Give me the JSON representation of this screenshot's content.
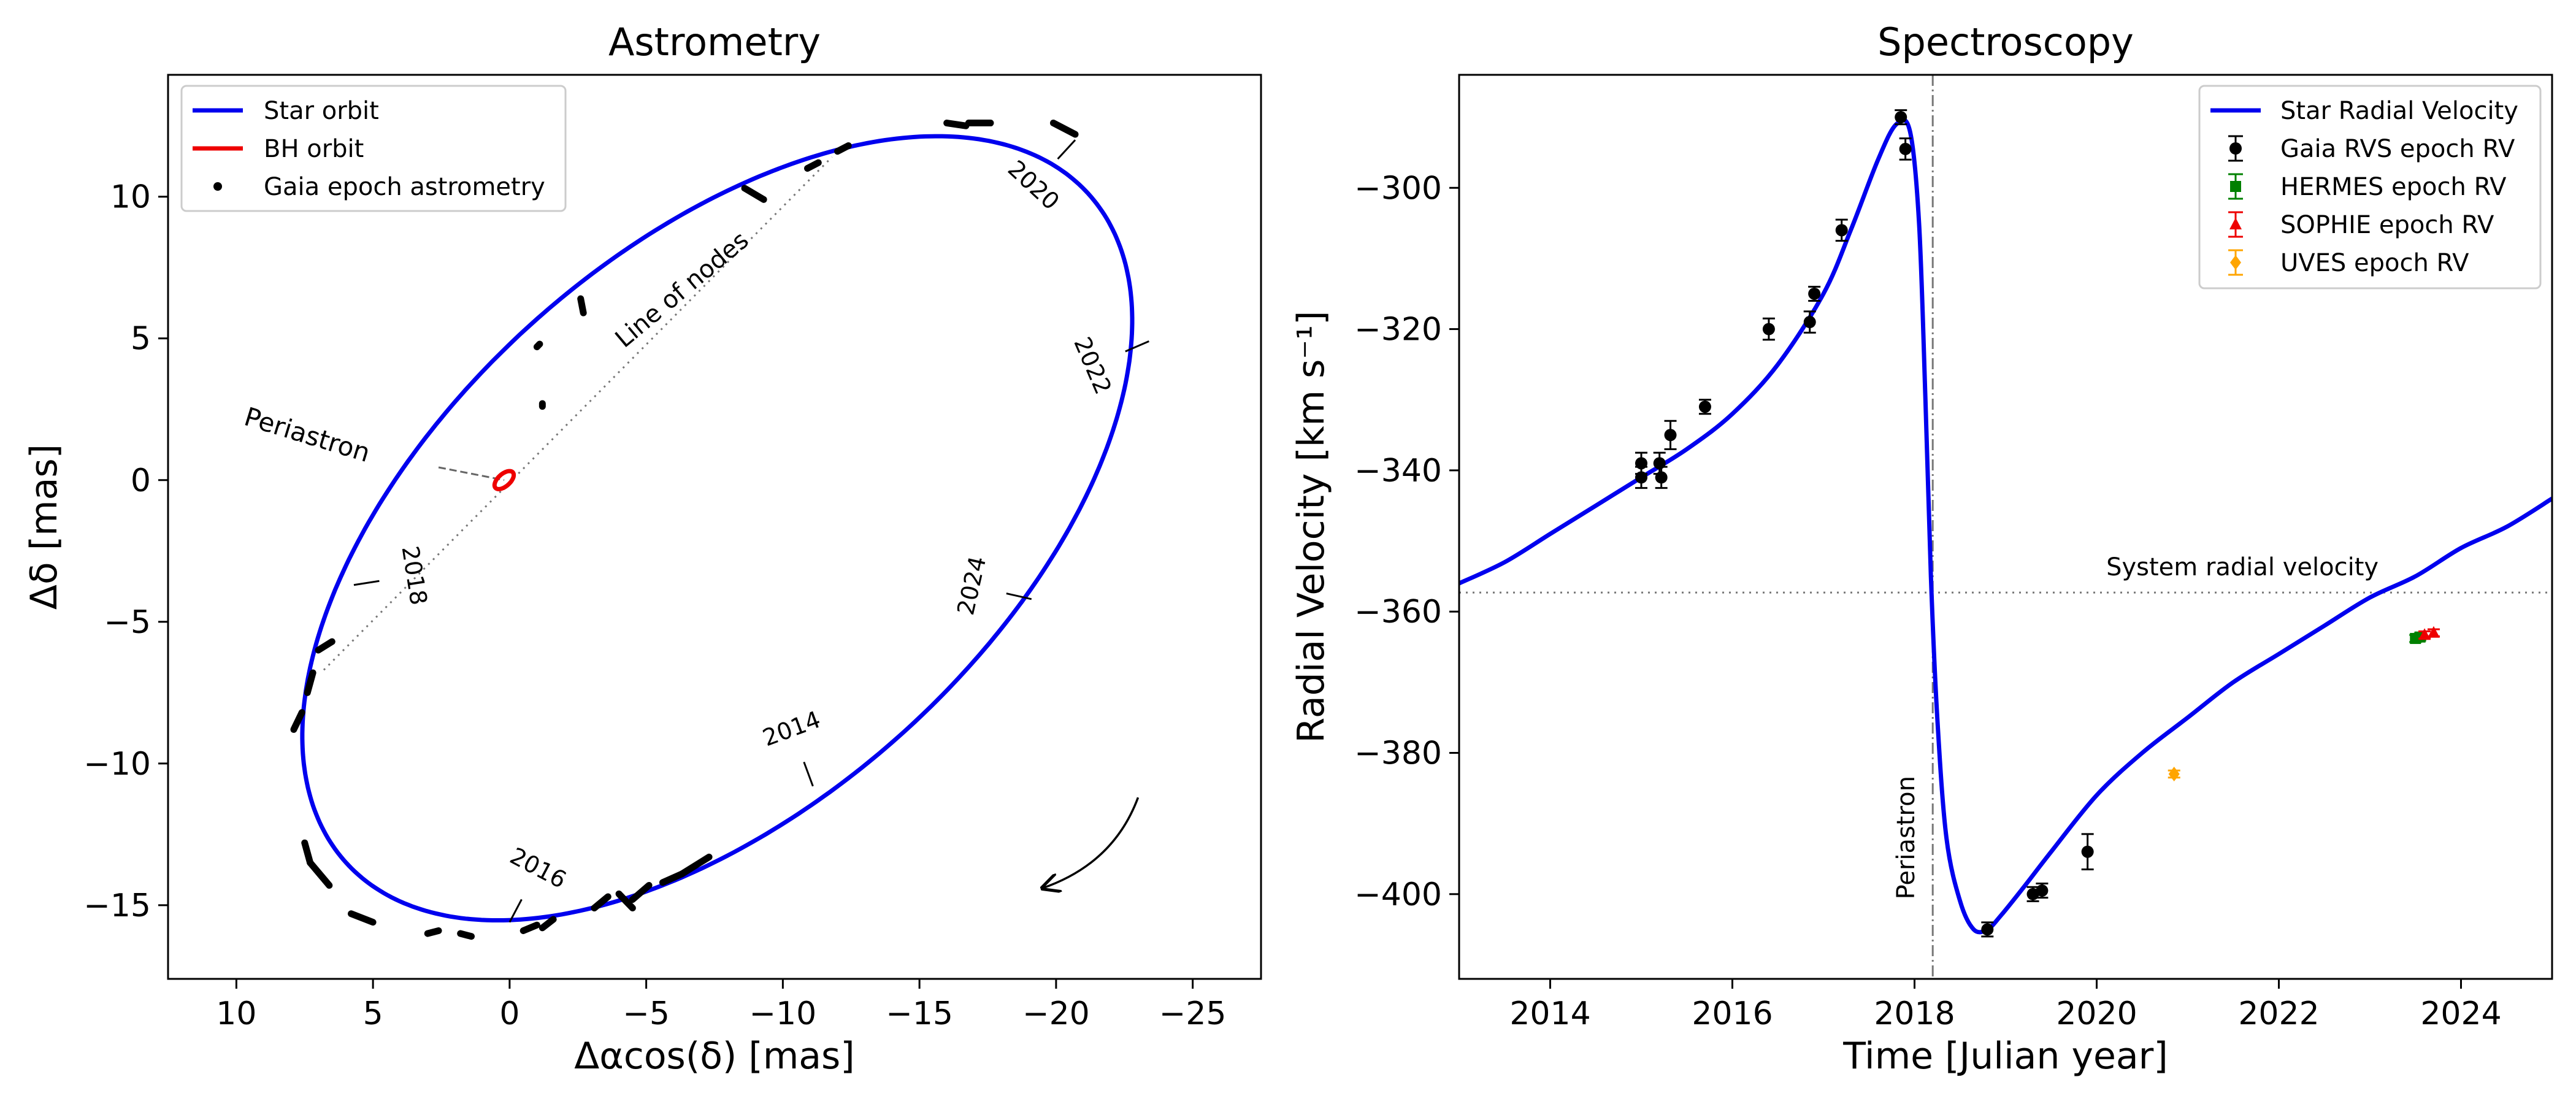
{
  "chart_data": [
    {
      "type": "scatter",
      "title": "Astrometry",
      "xlabel": "Δαcos(δ) [mas]",
      "ylabel": "Δδ [mas]",
      "xlim": [
        12.5,
        -27.5
      ],
      "ylim": [
        -17.6,
        14.3
      ],
      "x_reversed": true,
      "xticks": [
        10,
        5,
        0,
        -5,
        -10,
        -15,
        -20,
        -25
      ],
      "yticks": [
        10,
        5,
        0,
        -5,
        -10,
        -15
      ],
      "xtick_labels": [
        "10",
        "5",
        "0",
        "−5",
        "−10",
        "−15",
        "−20",
        "−25"
      ],
      "ytick_labels": [
        "10",
        "5",
        "0",
        "−5",
        "−10",
        "−15"
      ],
      "legend": {
        "placement": "top-left",
        "entries": [
          {
            "label": "Star orbit",
            "color": "#0000ee",
            "marker": "line"
          },
          {
            "label": "BH orbit",
            "color": "#ee0000",
            "marker": "line"
          },
          {
            "label": "Gaia epoch astrometry",
            "color": "#000000",
            "marker": "dot"
          }
        ]
      },
      "star_orbit": {
        "center": [
          -7.6,
          -1.7
        ],
        "semi_major": 18.0,
        "semi_minor": 9.9,
        "rotation_deg": 40,
        "color": "#0000ee"
      },
      "bh_orbit": {
        "center": [
          0.2,
          0.0
        ],
        "semi_major": 0.42,
        "semi_minor": 0.22,
        "rotation_deg": 40,
        "color": "#ee0000"
      },
      "line_of_nodes": {
        "from": [
          6.8,
          -6.7
        ],
        "to": [
          -11.8,
          11.4
        ],
        "label": "Line of nodes",
        "label_at": [
          -6.5,
          6.5
        ]
      },
      "periastron": {
        "label": "Periastron",
        "from": [
          2.6,
          0.45
        ],
        "to": [
          0.2,
          0.0
        ],
        "label_at": [
          7.5,
          1.3
        ]
      },
      "year_marks": [
        {
          "label": "2014",
          "at": [
            -11.1,
            -10.8
          ]
        },
        {
          "label": "2016",
          "at": [
            0.0,
            -15.6
          ]
        },
        {
          "label": "2018",
          "at": [
            5.7,
            -3.7
          ]
        },
        {
          "label": "2020",
          "at": [
            -20.7,
            12.0
          ]
        },
        {
          "label": "2022",
          "at": [
            -23.4,
            4.9
          ]
        },
        {
          "label": "2024",
          "at": [
            -19.1,
            -4.2
          ]
        }
      ],
      "gaia_epoch_segments": [
        [
          [
            7.9,
            -8.8
          ],
          [
            7.6,
            -8.2
          ]
        ],
        [
          [
            7.4,
            -7.5
          ],
          [
            7.2,
            -6.8
          ]
        ],
        [
          [
            7.0,
            -6.0
          ],
          [
            6.5,
            -5.7
          ]
        ],
        [
          [
            7.5,
            -12.8
          ],
          [
            7.3,
            -13.5
          ]
        ],
        [
          [
            7.3,
            -13.5
          ],
          [
            6.6,
            -14.3
          ]
        ],
        [
          [
            5.8,
            -15.3
          ],
          [
            5.0,
            -15.6
          ]
        ],
        [
          [
            3.0,
            -16.0
          ],
          [
            2.6,
            -15.9
          ]
        ],
        [
          [
            1.8,
            -16.0
          ],
          [
            1.4,
            -16.1
          ]
        ],
        [
          [
            -0.5,
            -15.9
          ],
          [
            -1.0,
            -15.7
          ]
        ],
        [
          [
            -1.2,
            -15.8
          ],
          [
            -1.6,
            -15.5
          ]
        ],
        [
          [
            -3.1,
            -15.1
          ],
          [
            -3.6,
            -14.7
          ]
        ],
        [
          [
            -4.0,
            -14.6
          ],
          [
            -4.5,
            -15.1
          ]
        ],
        [
          [
            -4.5,
            -14.8
          ],
          [
            -5.1,
            -14.3
          ]
        ],
        [
          [
            -5.6,
            -14.2
          ],
          [
            -6.3,
            -13.9
          ]
        ],
        [
          [
            -6.3,
            -13.9
          ],
          [
            -7.3,
            -13.3
          ]
        ],
        [
          [
            -9.3,
            9.9
          ],
          [
            -8.6,
            10.3
          ]
        ],
        [
          [
            -10.9,
            11.0
          ],
          [
            -11.3,
            11.2
          ]
        ],
        [
          [
            -12.0,
            11.6
          ],
          [
            -12.4,
            11.8
          ]
        ],
        [
          [
            -16.0,
            12.6
          ],
          [
            -16.7,
            12.5
          ]
        ],
        [
          [
            -16.8,
            12.6
          ],
          [
            -17.6,
            12.6
          ]
        ],
        [
          [
            -19.9,
            12.6
          ],
          [
            -20.7,
            12.2
          ]
        ],
        [
          [
            -1.2,
            2.6
          ],
          [
            -1.2,
            2.7
          ]
        ],
        [
          [
            -1.0,
            4.7
          ],
          [
            -1.1,
            4.8
          ]
        ],
        [
          [
            -2.6,
            6.4
          ],
          [
            -2.7,
            5.9
          ]
        ]
      ],
      "direction_arrow": {
        "from": [
          -23.0,
          -11.2
        ],
        "to": [
          -19.5,
          -14.4
        ]
      }
    },
    {
      "type": "line",
      "title": "Spectroscopy",
      "xlabel": "Time [Julian year]",
      "ylabel": "Radial Velocity [km s⁻¹]",
      "xlim": [
        2013.0,
        2025.0
      ],
      "ylim": [
        -412.0,
        -284.0
      ],
      "xticks": [
        2014,
        2016,
        2018,
        2020,
        2022,
        2024
      ],
      "yticks": [
        -300,
        -320,
        -340,
        -360,
        -380,
        -400
      ],
      "xtick_labels": [
        "2014",
        "2016",
        "2018",
        "2020",
        "2022",
        "2024"
      ],
      "ytick_labels": [
        "−300",
        "−320",
        "−340",
        "−360",
        "−380",
        "−400"
      ],
      "legend": {
        "placement": "top-right",
        "entries": [
          {
            "label": "Star Radial Velocity",
            "color": "#0000ee",
            "marker": "line"
          },
          {
            "label": "Gaia RVS epoch RV",
            "color": "#000000",
            "marker": "circle"
          },
          {
            "label": "HERMES epoch RV",
            "color": "#008000",
            "marker": "square"
          },
          {
            "label": "SOPHIE epoch RV",
            "color": "#ee0000",
            "marker": "triangle"
          },
          {
            "label": "UVES epoch RV",
            "color": "#ffa500",
            "marker": "diamond"
          }
        ]
      },
      "model_curve": {
        "color": "#0000ee",
        "x": [
          2013.0,
          2013.5,
          2014.0,
          2014.5,
          2015.0,
          2015.5,
          2016.0,
          2016.5,
          2017.0,
          2017.3,
          2017.6,
          2017.8,
          2017.95,
          2018.05,
          2018.12,
          2018.18,
          2018.25,
          2018.35,
          2018.5,
          2018.65,
          2018.8,
          2018.95,
          2019.2,
          2019.5,
          2020.0,
          2020.5,
          2021.0,
          2021.5,
          2022.0,
          2022.5,
          2023.0,
          2023.5,
          2024.0,
          2024.5,
          2025.0
        ],
        "y": [
          -356,
          -353,
          -349,
          -345,
          -341,
          -337,
          -332,
          -325,
          -315,
          -306,
          -296,
          -291,
          -292,
          -305,
          -330,
          -355,
          -375,
          -392,
          -401,
          -405,
          -405,
          -403,
          -399,
          -394,
          -386,
          -380,
          -375,
          -370,
          -366,
          -362,
          -358,
          -355,
          -351,
          -348,
          -344
        ]
      },
      "series": [
        {
          "name": "Gaia RVS epoch RV",
          "color": "#000000",
          "marker": "circle",
          "x": [
            2015.0,
            2015.0,
            2015.2,
            2015.22,
            2015.32,
            2015.7,
            2016.4,
            2016.85,
            2016.9,
            2017.2,
            2017.85,
            2017.9,
            2018.8,
            2019.3,
            2019.4,
            2019.9
          ],
          "y": [
            -339.0,
            -341.0,
            -339.0,
            -341.0,
            -335.0,
            -331.0,
            -320.0,
            -319.0,
            -315.0,
            -306.0,
            -290.0,
            -294.5,
            -405.0,
            -400.0,
            -399.5,
            -394.0
          ],
          "err": [
            1.5,
            1.5,
            1.5,
            1.5,
            2.0,
            1.0,
            1.5,
            1.5,
            1.0,
            1.5,
            1.0,
            1.5,
            1.0,
            1.0,
            1.0,
            2.5
          ]
        },
        {
          "name": "HERMES epoch RV",
          "color": "#008000",
          "marker": "square",
          "x": [
            2023.5,
            2023.55
          ],
          "y": [
            -363.8,
            -363.6
          ],
          "err": [
            0.5,
            0.5
          ]
        },
        {
          "name": "SOPHIE epoch RV",
          "color": "#ee0000",
          "marker": "triangle",
          "x": [
            2023.6,
            2023.7
          ],
          "y": [
            -363.3,
            -363.0
          ],
          "err": [
            0.5,
            0.5
          ]
        },
        {
          "name": "UVES epoch RV",
          "color": "#ffa500",
          "marker": "diamond",
          "x": [
            2020.85
          ],
          "y": [
            -383.0
          ],
          "err": [
            0.5
          ]
        }
      ],
      "system_rv": {
        "value": -357.3,
        "label": "System radial velocity"
      },
      "periastron_time": {
        "value": 2018.2,
        "label": "Periastron"
      }
    }
  ]
}
